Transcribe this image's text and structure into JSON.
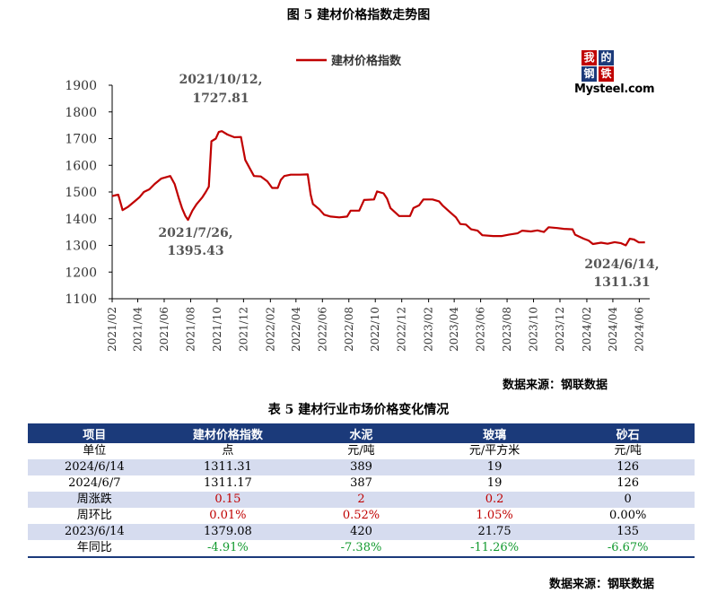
{
  "figure_title": "图 5   建材价格指数走势图",
  "chart_data": {
    "type": "line",
    "legend": "建材价格指数",
    "legend_position": "top-center",
    "grid": false,
    "ylim": [
      1100,
      1900
    ],
    "yticks": [
      1100,
      1200,
      1300,
      1400,
      1500,
      1600,
      1700,
      1800,
      1900
    ],
    "xticks": [
      "2021/02",
      "2021/04",
      "2021/06",
      "2021/08",
      "2021/10",
      "2021/12",
      "2022/02",
      "2022/04",
      "2022/06",
      "2022/08",
      "2022/10",
      "2022/12",
      "2023/02",
      "2023/04",
      "2023/06",
      "2023/08",
      "2023/10",
      "2023/12",
      "2024/02",
      "2024/04",
      "2024/06"
    ],
    "series": [
      {
        "name": "建材价格指数",
        "color": "#c00000",
        "points": [
          [
            "2021-02-01",
            1485
          ],
          [
            "2021-02-15",
            1490
          ],
          [
            "2021-02-25",
            1432
          ],
          [
            "2021-03-10",
            1445
          ],
          [
            "2021-03-25",
            1465
          ],
          [
            "2021-04-05",
            1480
          ],
          [
            "2021-04-15",
            1500
          ],
          [
            "2021-04-28",
            1510
          ],
          [
            "2021-05-10",
            1530
          ],
          [
            "2021-05-25",
            1550
          ],
          [
            "2021-06-05",
            1555
          ],
          [
            "2021-06-15",
            1560
          ],
          [
            "2021-06-25",
            1530
          ],
          [
            "2021-07-05",
            1475
          ],
          [
            "2021-07-12",
            1440
          ],
          [
            "2021-07-20",
            1410
          ],
          [
            "2021-07-26",
            1395.43
          ],
          [
            "2021-08-05",
            1430
          ],
          [
            "2021-08-15",
            1455
          ],
          [
            "2021-08-28",
            1480
          ],
          [
            "2021-09-05",
            1500
          ],
          [
            "2021-09-12",
            1520
          ],
          [
            "2021-09-18",
            1690
          ],
          [
            "2021-09-28",
            1700
          ],
          [
            "2021-10-05",
            1725
          ],
          [
            "2021-10-12",
            1727.81
          ],
          [
            "2021-10-25",
            1715
          ],
          [
            "2021-11-10",
            1705
          ],
          [
            "2021-11-25",
            1706
          ],
          [
            "2021-12-05",
            1620
          ],
          [
            "2021-12-15",
            1590
          ],
          [
            "2021-12-25",
            1560
          ],
          [
            "2022-01-10",
            1558
          ],
          [
            "2022-01-25",
            1540
          ],
          [
            "2022-02-05",
            1515
          ],
          [
            "2022-02-18",
            1515
          ],
          [
            "2022-02-25",
            1545
          ],
          [
            "2022-03-05",
            1560
          ],
          [
            "2022-03-20",
            1565
          ],
          [
            "2022-04-10",
            1565
          ],
          [
            "2022-04-28",
            1566
          ],
          [
            "2022-05-05",
            1490
          ],
          [
            "2022-05-10",
            1455
          ],
          [
            "2022-05-25",
            1435
          ],
          [
            "2022-06-05",
            1415
          ],
          [
            "2022-06-20",
            1408
          ],
          [
            "2022-07-10",
            1405
          ],
          [
            "2022-07-28",
            1408
          ],
          [
            "2022-08-05",
            1430
          ],
          [
            "2022-08-25",
            1430
          ],
          [
            "2022-09-05",
            1470
          ],
          [
            "2022-09-28",
            1472
          ],
          [
            "2022-10-05",
            1502
          ],
          [
            "2022-10-20",
            1495
          ],
          [
            "2022-10-28",
            1475
          ],
          [
            "2022-11-05",
            1440
          ],
          [
            "2022-11-25",
            1410
          ],
          [
            "2022-12-20",
            1410
          ],
          [
            "2022-12-28",
            1440
          ],
          [
            "2023-01-10",
            1450
          ],
          [
            "2023-01-20",
            1472
          ],
          [
            "2023-02-10",
            1472
          ],
          [
            "2023-02-25",
            1465
          ],
          [
            "2023-03-05",
            1450
          ],
          [
            "2023-03-20",
            1428
          ],
          [
            "2023-04-05",
            1405
          ],
          [
            "2023-04-15",
            1380
          ],
          [
            "2023-04-28",
            1378
          ],
          [
            "2023-05-10",
            1360
          ],
          [
            "2023-05-25",
            1355
          ],
          [
            "2023-06-05",
            1338
          ],
          [
            "2023-06-30",
            1335
          ],
          [
            "2023-07-20",
            1335
          ],
          [
            "2023-08-05",
            1340
          ],
          [
            "2023-08-25",
            1345
          ],
          [
            "2023-09-05",
            1355
          ],
          [
            "2023-09-25",
            1352
          ],
          [
            "2023-10-10",
            1356
          ],
          [
            "2023-10-25",
            1350
          ],
          [
            "2023-11-05",
            1368
          ],
          [
            "2023-11-25",
            1365
          ],
          [
            "2023-12-10",
            1362
          ],
          [
            "2023-12-30",
            1360
          ],
          [
            "2024-01-05",
            1340
          ],
          [
            "2024-01-25",
            1325
          ],
          [
            "2024-02-05",
            1318
          ],
          [
            "2024-02-15",
            1305
          ],
          [
            "2024-03-05",
            1310
          ],
          [
            "2024-03-20",
            1306
          ],
          [
            "2024-04-05",
            1312
          ],
          [
            "2024-04-20",
            1308
          ],
          [
            "2024-05-01",
            1300
          ],
          [
            "2024-05-10",
            1325
          ],
          [
            "2024-05-20",
            1322
          ],
          [
            "2024-05-31",
            1311.17
          ],
          [
            "2024-06-07",
            1311.17
          ],
          [
            "2024-06-14",
            1311.31
          ]
        ]
      }
    ],
    "annotations": [
      {
        "text": "2021/10/12,\n1727.81"
      },
      {
        "text": "2021/7/26,\n1395.43"
      },
      {
        "text": "2024/6/14,\n1311.31"
      }
    ]
  },
  "logo": {
    "box1": "我",
    "box2": "的",
    "box3": "钢",
    "box4": "铁",
    "word": "Mysteel.com",
    "colors": [
      "#c00000",
      "#1b3a7a"
    ]
  },
  "source_text": "数据来源：钢联数据",
  "table_title": "表 5   建材行业市场价格变化情况",
  "table": {
    "headers": [
      "项目",
      "建材价格指数",
      "水泥",
      "玻璃",
      "砂石"
    ],
    "rows": [
      [
        "单位",
        "点",
        "元/吨",
        "元/平方米",
        "元/吨"
      ],
      [
        "2024/6/14",
        "1311.31",
        "389",
        "19",
        "126"
      ],
      [
        "2024/6/7",
        "1311.17",
        "387",
        "19",
        "126"
      ],
      [
        "周涨跌",
        "0.15",
        "2",
        "0.2",
        "0"
      ],
      [
        "周环比",
        "0.01%",
        "0.52%",
        "1.05%",
        "0.00%"
      ],
      [
        "2023/6/14",
        "1379.08",
        "420",
        "21.75",
        "135"
      ],
      [
        "年同比",
        "-4.91%",
        "-7.38%",
        "-11.26%",
        "-6.67%"
      ]
    ]
  },
  "colors": {
    "line": "#c00000",
    "header": "#1b3a7a",
    "stripe": "#d6dcef",
    "up": "#c00000",
    "down": "#139a2f"
  }
}
